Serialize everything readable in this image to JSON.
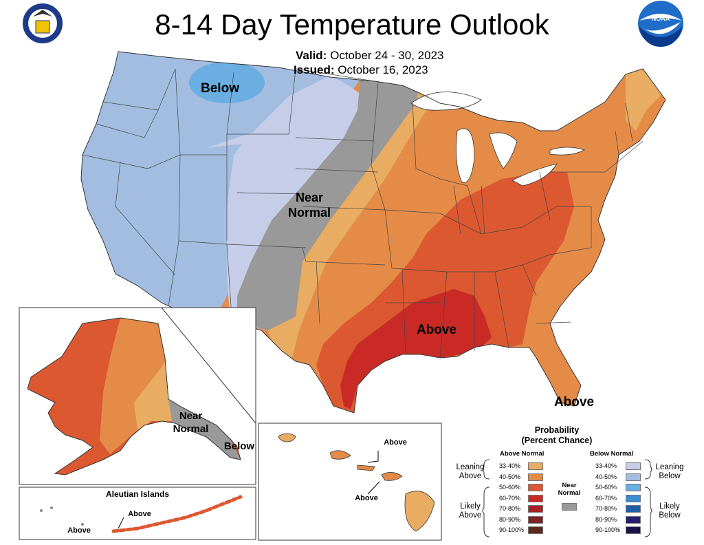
{
  "title": "8-14 Day Temperature Outlook",
  "valid_label": "Valid:",
  "valid_dates": "October 24 - 30, 2023",
  "issued_label": "Issued:",
  "issued_date": "October 16, 2023",
  "seal_icon": "department-of-commerce-seal",
  "noaa_logo_text": "NOAA",
  "map_labels": {
    "conus_below": "Below",
    "conus_near_1": "Near",
    "conus_near_2": "Normal",
    "conus_above": "Above",
    "florida_above": "Above",
    "alaska_near_1": "Near",
    "alaska_near_2": "Normal",
    "alaska_below": "Below",
    "aleutian_title": "Aleutian Islands",
    "aleutian_above_1": "Above",
    "aleutian_above_2": "Above",
    "hawaii_above_1": "Above",
    "hawaii_above_2": "Above"
  },
  "legend": {
    "title_1": "Probability",
    "title_2": "(Percent Chance)",
    "above_header": "Above Normal",
    "below_header": "Below Normal",
    "near_label_1": "Near",
    "near_label_2": "Normal",
    "leaning_above_1": "Leaning",
    "leaning_above_2": "Above",
    "likely_above_1": "Likely",
    "likely_above_2": "Above",
    "leaning_below_1": "Leaning",
    "leaning_below_2": "Below",
    "likely_below_1": "Likely",
    "likely_below_2": "Below",
    "above": [
      {
        "range": "33-40%",
        "color": "#e8ac62"
      },
      {
        "range": "40-50%",
        "color": "#e58b48"
      },
      {
        "range": "50-60%",
        "color": "#dc5830"
      },
      {
        "range": "60-70%",
        "color": "#c92a26"
      },
      {
        "range": "70-80%",
        "color": "#a52222"
      },
      {
        "range": "80-90%",
        "color": "#7c2424"
      },
      {
        "range": "90-100%",
        "color": "#5a2a1a"
      }
    ],
    "near_color": "#999999",
    "below": [
      {
        "range": "33-40%",
        "color": "#c5cde8"
      },
      {
        "range": "40-50%",
        "color": "#a2bde0"
      },
      {
        "range": "50-60%",
        "color": "#6aaee2"
      },
      {
        "range": "60-70%",
        "color": "#3c8cd0"
      },
      {
        "range": "70-80%",
        "color": "#1f5fa8"
      },
      {
        "range": "80-90%",
        "color": "#25206e"
      },
      {
        "range": "90-100%",
        "color": "#1a1446"
      }
    ]
  }
}
